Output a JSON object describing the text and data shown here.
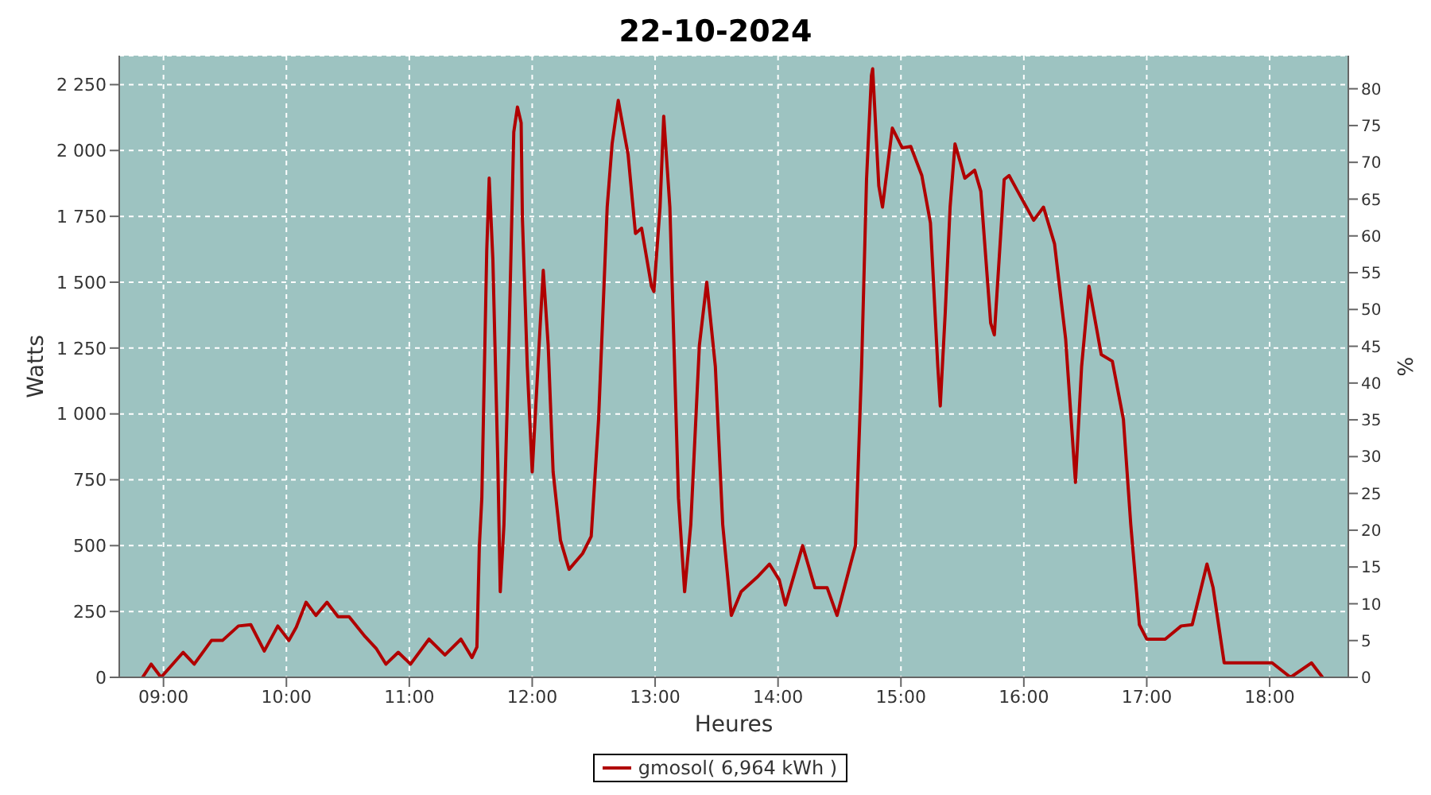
{
  "chart_data": {
    "type": "line",
    "title": "22-10-2024",
    "xlabel": "Heures",
    "ylabel": "Watts",
    "y2label": "%",
    "xlim": [
      8.64,
      18.64
    ],
    "xticks": [
      {
        "value": 9,
        "label": "09:00"
      },
      {
        "value": 10,
        "label": "10:00"
      },
      {
        "value": 11,
        "label": "11:00"
      },
      {
        "value": 12,
        "label": "12:00"
      },
      {
        "value": 13,
        "label": "13:00"
      },
      {
        "value": 14,
        "label": "14:00"
      },
      {
        "value": 15,
        "label": "15:00"
      },
      {
        "value": 16,
        "label": "16:00"
      },
      {
        "value": 17,
        "label": "17:00"
      },
      {
        "value": 18,
        "label": "18:00"
      }
    ],
    "ylim": [
      0,
      2360
    ],
    "yticks": [
      0,
      250,
      500,
      750,
      {
        "value": 1000,
        "label": "1 000"
      },
      {
        "value": 1250,
        "label": "1 250"
      },
      {
        "value": 1500,
        "label": "1 500"
      },
      {
        "value": 1750,
        "label": "1 750"
      },
      {
        "value": 2000,
        "label": "2 000"
      },
      {
        "value": 2250,
        "label": "2 250"
      }
    ],
    "y2lim": [
      0,
      84.5
    ],
    "y2ticks": [
      0,
      5,
      10,
      15,
      20,
      25,
      30,
      35,
      40,
      45,
      50,
      55,
      60,
      65,
      70,
      75,
      80
    ],
    "grid": true,
    "legend": "bottom",
    "marker": "none",
    "line_style": "solid",
    "series": [
      {
        "name": "gmosol( 6,964 kWh )",
        "color": "#b00000",
        "x": [
          8.83,
          8.9,
          8.98,
          9.16,
          9.25,
          9.39,
          9.48,
          9.61,
          9.71,
          9.82,
          9.93,
          10.02,
          10.08,
          10.16,
          10.24,
          10.33,
          10.42,
          10.51,
          10.64,
          10.73,
          10.81,
          10.91,
          11.01,
          11.16,
          11.29,
          11.42,
          11.51,
          11.55,
          11.57,
          11.59,
          11.63,
          11.65,
          11.68,
          11.72,
          11.74,
          11.77,
          11.81,
          11.85,
          11.88,
          11.91,
          11.92,
          11.96,
          12.0,
          12.07,
          12.09,
          12.13,
          12.17,
          12.23,
          12.3,
          12.41,
          12.48,
          12.54,
          12.61,
          12.65,
          12.7,
          12.78,
          12.84,
          12.89,
          12.97,
          12.99,
          13.04,
          13.07,
          13.12,
          13.19,
          13.24,
          13.29,
          13.36,
          13.42,
          13.49,
          13.55,
          13.62,
          13.7,
          13.83,
          13.93,
          14.01,
          14.06,
          14.2,
          14.3,
          14.4,
          14.48,
          14.59,
          14.63,
          14.68,
          14.72,
          14.76,
          14.77,
          14.82,
          14.85,
          14.93,
          15.01,
          15.08,
          15.17,
          15.24,
          15.3,
          15.32,
          15.36,
          15.4,
          15.44,
          15.52,
          15.6,
          15.65,
          15.73,
          15.76,
          15.84,
          15.88,
          15.95,
          16.08,
          16.16,
          16.25,
          16.34,
          16.42,
          16.47,
          16.53,
          16.63,
          16.72,
          16.81,
          16.87,
          16.94,
          17.0,
          17.15,
          17.28,
          17.37,
          17.49,
          17.54,
          17.63,
          18.02,
          18.17,
          18.34,
          18.43
        ],
        "values": [
          0,
          50,
          0,
          95,
          50,
          140,
          140,
          195,
          200,
          100,
          195,
          140,
          190,
          285,
          235,
          285,
          230,
          230,
          155,
          110,
          50,
          95,
          50,
          145,
          85,
          145,
          75,
          115,
          500,
          680,
          1620,
          1895,
          1585,
          820,
          325,
          580,
          1260,
          2070,
          2165,
          2105,
          1745,
          1180,
          780,
          1380,
          1545,
          1260,
          780,
          520,
          410,
          470,
          535,
          980,
          1785,
          2025,
          2190,
          1985,
          1685,
          1705,
          1485,
          1465,
          1785,
          2130,
          1785,
          680,
          325,
          580,
          1260,
          1500,
          1180,
          580,
          235,
          325,
          380,
          430,
          370,
          275,
          500,
          340,
          340,
          235,
          430,
          500,
          1180,
          1890,
          2285,
          2310,
          1865,
          1785,
          2085,
          2010,
          2015,
          1905,
          1725,
          1180,
          1030,
          1380,
          1785,
          2025,
          1895,
          1925,
          1845,
          1345,
          1300,
          1890,
          1905,
          1845,
          1735,
          1785,
          1645,
          1285,
          740,
          1180,
          1485,
          1225,
          1200,
          980,
          580,
          200,
          145,
          145,
          195,
          200,
          430,
          340,
          55,
          55,
          0,
          55,
          0
        ]
      }
    ]
  }
}
